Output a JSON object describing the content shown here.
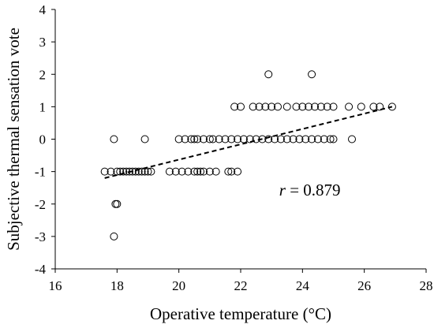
{
  "chart_data": {
    "type": "scatter",
    "title": "",
    "xlabel": "Operative temperature (°C)",
    "ylabel": "Subjective thermal sensation vote",
    "xlim": [
      16,
      28
    ],
    "ylim": [
      -4,
      4
    ],
    "xticks": [
      16,
      18,
      20,
      22,
      24,
      26,
      28
    ],
    "yticks": [
      -4,
      -3,
      -2,
      -1,
      0,
      1,
      2,
      3,
      4
    ],
    "grid": false,
    "legend": "none",
    "marker": "open-circle",
    "annotation": {
      "prefix": "r",
      "text": " = 0.879",
      "x": 24.7,
      "y": -1.3
    },
    "trendline": {
      "style": "dashed",
      "x": [
        17.6,
        26.9
      ],
      "y": [
        -1.2,
        1.0
      ]
    },
    "points": [
      {
        "x": 17.9,
        "y": -3
      },
      {
        "x": 18.0,
        "y": -2
      },
      {
        "x": 17.95,
        "y": -2
      },
      {
        "x": 17.9,
        "y": 0
      },
      {
        "x": 18.9,
        "y": 0
      },
      {
        "x": 22.9,
        "y": 2
      },
      {
        "x": 24.3,
        "y": 2
      },
      {
        "x": 17.6,
        "y": -1
      },
      {
        "x": 17.8,
        "y": -1
      },
      {
        "x": 18.0,
        "y": -1
      },
      {
        "x": 18.1,
        "y": -1
      },
      {
        "x": 18.2,
        "y": -1
      },
      {
        "x": 18.3,
        "y": -1
      },
      {
        "x": 18.4,
        "y": -1
      },
      {
        "x": 18.5,
        "y": -1
      },
      {
        "x": 18.6,
        "y": -1
      },
      {
        "x": 18.7,
        "y": -1
      },
      {
        "x": 18.8,
        "y": -1
      },
      {
        "x": 18.9,
        "y": -1
      },
      {
        "x": 19.0,
        "y": -1
      },
      {
        "x": 19.1,
        "y": -1
      },
      {
        "x": 19.7,
        "y": -1
      },
      {
        "x": 19.9,
        "y": -1
      },
      {
        "x": 20.1,
        "y": -1
      },
      {
        "x": 20.3,
        "y": -1
      },
      {
        "x": 20.5,
        "y": -1
      },
      {
        "x": 20.6,
        "y": -1
      },
      {
        "x": 20.7,
        "y": -1
      },
      {
        "x": 20.8,
        "y": -1
      },
      {
        "x": 21.0,
        "y": -1
      },
      {
        "x": 21.2,
        "y": -1
      },
      {
        "x": 21.6,
        "y": -1
      },
      {
        "x": 21.7,
        "y": -1
      },
      {
        "x": 21.9,
        "y": -1
      },
      {
        "x": 20.0,
        "y": 0
      },
      {
        "x": 20.2,
        "y": 0
      },
      {
        "x": 20.4,
        "y": 0
      },
      {
        "x": 20.5,
        "y": 0
      },
      {
        "x": 20.6,
        "y": 0
      },
      {
        "x": 20.8,
        "y": 0
      },
      {
        "x": 21.0,
        "y": 0
      },
      {
        "x": 21.1,
        "y": 0
      },
      {
        "x": 21.3,
        "y": 0
      },
      {
        "x": 21.5,
        "y": 0
      },
      {
        "x": 21.7,
        "y": 0
      },
      {
        "x": 21.9,
        "y": 0
      },
      {
        "x": 22.1,
        "y": 0
      },
      {
        "x": 22.3,
        "y": 0
      },
      {
        "x": 22.5,
        "y": 0
      },
      {
        "x": 22.7,
        "y": 0
      },
      {
        "x": 22.9,
        "y": 0
      },
      {
        "x": 23.1,
        "y": 0
      },
      {
        "x": 23.3,
        "y": 0
      },
      {
        "x": 23.5,
        "y": 0
      },
      {
        "x": 23.7,
        "y": 0
      },
      {
        "x": 23.9,
        "y": 0
      },
      {
        "x": 24.1,
        "y": 0
      },
      {
        "x": 24.3,
        "y": 0
      },
      {
        "x": 24.5,
        "y": 0
      },
      {
        "x": 24.7,
        "y": 0
      },
      {
        "x": 24.9,
        "y": 0
      },
      {
        "x": 25.0,
        "y": 0
      },
      {
        "x": 25.6,
        "y": 0
      },
      {
        "x": 21.8,
        "y": 1
      },
      {
        "x": 22.0,
        "y": 1
      },
      {
        "x": 22.4,
        "y": 1
      },
      {
        "x": 22.6,
        "y": 1
      },
      {
        "x": 22.8,
        "y": 1
      },
      {
        "x": 23.0,
        "y": 1
      },
      {
        "x": 23.2,
        "y": 1
      },
      {
        "x": 23.5,
        "y": 1
      },
      {
        "x": 23.8,
        "y": 1
      },
      {
        "x": 24.0,
        "y": 1
      },
      {
        "x": 24.2,
        "y": 1
      },
      {
        "x": 24.4,
        "y": 1
      },
      {
        "x": 24.6,
        "y": 1
      },
      {
        "x": 24.8,
        "y": 1
      },
      {
        "x": 25.0,
        "y": 1
      },
      {
        "x": 25.5,
        "y": 1
      },
      {
        "x": 25.9,
        "y": 1
      },
      {
        "x": 26.3,
        "y": 1
      },
      {
        "x": 26.5,
        "y": 1
      },
      {
        "x": 26.9,
        "y": 1
      }
    ]
  }
}
